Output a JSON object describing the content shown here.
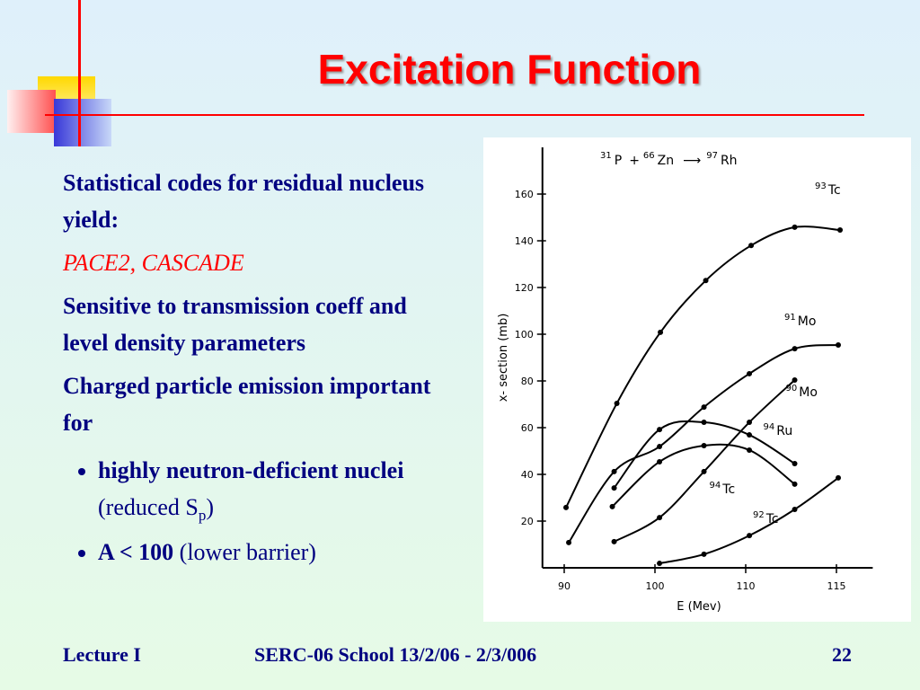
{
  "header": {
    "title": "Excitation Function"
  },
  "body": {
    "paragraphs": [
      "Statistical codes for residual nucleus yield:",
      "PACE2, CASCADE",
      "Sensitive to transmission coeff and level density parameters",
      "Charged particle emission important for"
    ],
    "bullets": [
      {
        "bold": "highly neutron-deficient nuclei",
        "text": "(reduced S",
        "sub": "p",
        "tail": ")"
      },
      {
        "bold": "A < 100",
        "text": "(lower barrier)"
      }
    ]
  },
  "chart_data": {
    "type": "line",
    "reaction": {
      "a_mass": "31",
      "a": "P",
      "plus": "+",
      "b_mass": "66",
      "b": "Zn",
      "arrow": "⟶",
      "c_mass": "97",
      "c": "Rh"
    },
    "x_label": "E (Mev)",
    "y_label": "x- section (mb)",
    "xscale": "tick-interpolated",
    "xlim": [
      87.6,
      117
    ],
    "xticks": [
      90,
      100,
      110,
      115
    ],
    "ylim": [
      0,
      180
    ],
    "yticks": [
      20,
      40,
      60,
      80,
      100,
      120,
      140,
      160
    ],
    "series": [
      {
        "mass": "93",
        "name": "Tc",
        "color": "#000000",
        "x": [
          90.2,
          95.8,
          100.6,
          105.6,
          110.3,
          112.7,
          115.2
        ],
        "values": [
          25.8,
          70.4,
          100.8,
          123,
          138,
          145.8,
          144.6
        ]
      },
      {
        "mass": "91",
        "name": "Mo",
        "color": "#000000",
        "x": [
          90.5,
          95.5,
          100.5,
          105.4,
          110.2,
          112.7,
          115.1
        ],
        "values": [
          10.8,
          41.2,
          51.9,
          68.8,
          83.1,
          93.8,
          95.4
        ]
      },
      {
        "mass": "90",
        "name": "Mo",
        "color": "#000000",
        "x": [
          95.5,
          100.5,
          105.4,
          110.2,
          112.7
        ],
        "values": [
          11.2,
          21.5,
          41.2,
          62.3,
          80.4
        ]
      },
      {
        "mass": "94",
        "name": "Ru",
        "color": "#000000",
        "x": [
          95.5,
          100.5,
          105.4,
          110.2,
          112.7
        ],
        "values": [
          34.2,
          59.2,
          62.3,
          56.9,
          44.6
        ]
      },
      {
        "mass": "94",
        "name": "Tc",
        "color": "#000000",
        "x": [
          95.3,
          100.5,
          105.4,
          110.2,
          112.7
        ],
        "values": [
          26.2,
          45.4,
          52.3,
          50.4,
          35.8
        ]
      },
      {
        "mass": "92",
        "name": "Tc",
        "color": "#000000",
        "x": [
          100.5,
          105.4,
          110.2,
          112.7,
          115.1
        ],
        "values": [
          1.9,
          5.8,
          13.8,
          25,
          38.5
        ]
      }
    ]
  },
  "footer": {
    "left": "Lecture I",
    "center": "SERC-06 School  13/2/06 - 2/3/006",
    "page": "22"
  }
}
